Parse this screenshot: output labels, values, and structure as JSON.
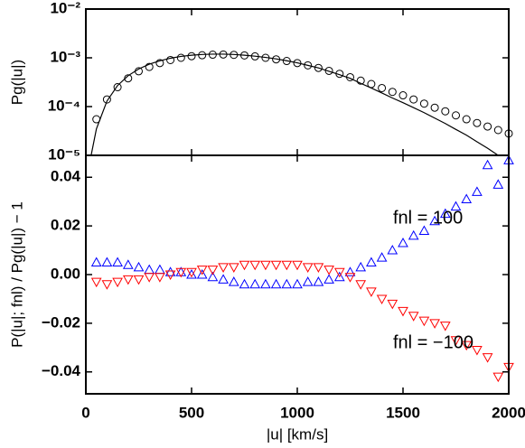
{
  "chart_data": [
    {
      "type": "scatter",
      "ylabel": "Pg(|u|)",
      "ylog": true,
      "xlim": [
        0,
        2000
      ],
      "xticks": [
        0,
        500,
        1000,
        1500,
        2000
      ],
      "ylim": [
        1e-05,
        0.01
      ],
      "yticks": [
        {
          "value": 0.01,
          "label": "10⁻²"
        },
        {
          "value": 0.001,
          "label": "10⁻³"
        },
        {
          "value": 0.0001,
          "label": "10⁻⁴"
        },
        {
          "value": 1e-05,
          "label": "10⁻⁵"
        }
      ],
      "series": [
        {
          "marker": "circle",
          "color": "#000000",
          "x": [
            50,
            100,
            150,
            200,
            250,
            300,
            350,
            400,
            450,
            500,
            550,
            600,
            650,
            700,
            750,
            800,
            850,
            900,
            950,
            1000,
            1050,
            1100,
            1150,
            1200,
            1250,
            1300,
            1350,
            1400,
            1450,
            1500,
            1550,
            1600,
            1650,
            1700,
            1750,
            1800,
            1850,
            1900,
            1950,
            2000
          ],
          "values": [
            5.5e-05,
            0.00014,
            0.00025,
            0.00038,
            0.00053,
            0.00065,
            0.00078,
            0.0009,
            0.001,
            0.00108,
            0.00113,
            0.00116,
            0.00117,
            0.00115,
            0.00112,
            0.00107,
            0.001,
            0.00093,
            0.00086,
            0.00078,
            0.0007,
            0.00062,
            0.00054,
            0.00047,
            0.0004,
            0.00034,
            0.00029,
            0.00024,
            0.0002,
            0.00017,
            0.00014,
            0.000115,
            9.5e-05,
            8e-05,
            6.6e-05,
            5.5e-05,
            4.6e-05,
            3.9e-05,
            3.3e-05,
            2.8e-05
          ]
        },
        {
          "marker": "line",
          "color": "#000000",
          "x": [
            25,
            50,
            100,
            150,
            200,
            250,
            300,
            350,
            400,
            450,
            500,
            550,
            600,
            650,
            700,
            750,
            800,
            850,
            900,
            950,
            1000,
            1050,
            1100,
            1150,
            1200,
            1250,
            1300,
            1350,
            1400,
            1450,
            1500,
            1550,
            1600,
            1650,
            1700,
            1750,
            1800,
            1850,
            1900,
            1950
          ],
          "values": [
            1e-05,
            3.5e-05,
            0.00013,
            0.00027,
            0.00043,
            0.00059,
            0.00074,
            0.00087,
            0.00098,
            0.00107,
            0.00113,
            0.00117,
            0.00119,
            0.00119,
            0.00117,
            0.00113,
            0.00108,
            0.00102,
            0.00095,
            0.00087,
            0.00079,
            0.0007,
            0.00062,
            0.00053,
            0.00045,
            0.00038,
            0.0003,
            0.00024,
            0.00019,
            0.00015,
            0.00012,
            9.5e-05,
            7.5e-05,
            5.8e-05,
            4.5e-05,
            3.4e-05,
            2.6e-05,
            1.9e-05,
            1.4e-05,
            1e-05
          ]
        }
      ]
    },
    {
      "type": "scatter",
      "xlabel": "|u| [km/s]",
      "ylabel": "P(|u|; fnl) / Pg(|u|) − 1",
      "xlim": [
        0,
        2000
      ],
      "xticks": [
        0,
        500,
        1000,
        1500,
        2000
      ],
      "ylim": [
        -0.049,
        0.049
      ],
      "yticks": [
        0.04,
        0.02,
        {
          "value": 0,
          "label": "0.00"
        },
        {
          "value": -0.02,
          "label": "−0.02"
        },
        {
          "value": -0.04,
          "label": "−0.04"
        }
      ],
      "x": [
        50,
        100,
        150,
        200,
        250,
        300,
        350,
        400,
        450,
        500,
        550,
        600,
        650,
        700,
        750,
        800,
        850,
        900,
        950,
        1000,
        1050,
        1100,
        1150,
        1200,
        1250,
        1300,
        1350,
        1400,
        1450,
        1500,
        1550,
        1600,
        1650,
        1700,
        1750,
        1800,
        1850,
        1900,
        1950,
        2000
      ],
      "series": [
        {
          "marker": "triangle-up",
          "color": "#0000ff",
          "values": [
            0.005,
            0.005,
            0.005,
            0.004,
            0.003,
            0.002,
            0.002,
            0.001,
            0.001,
            0,
            0,
            -0.001,
            -0.002,
            -0.003,
            -0.004,
            -0.004,
            -0.004,
            -0.004,
            -0.004,
            -0.004,
            -0.003,
            -0.003,
            -0.002,
            -0.001,
            0.001,
            0.003,
            0.005,
            0.007,
            0.01,
            0.013,
            0.016,
            0.018,
            0.022,
            0.025,
            0.028,
            0.031,
            0.034,
            0.045,
            0.037,
            0.047
          ]
        },
        {
          "marker": "triangle-down",
          "color": "#ff0000",
          "values": [
            -0.003,
            -0.004,
            -0.003,
            -0.002,
            -0.002,
            -0.001,
            -0.001,
            0,
            0.001,
            0.001,
            0.002,
            0.002,
            0.003,
            0.003,
            0.004,
            0.004,
            0.004,
            0.004,
            0.004,
            0.004,
            0.003,
            0.003,
            0.002,
            0.001,
            -0.001,
            -0.004,
            -0.007,
            -0.01,
            -0.012,
            -0.015,
            -0.017,
            -0.019,
            -0.02,
            -0.021,
            -0.027,
            -0.029,
            -0.031,
            -0.034,
            -0.042,
            -0.038
          ]
        }
      ],
      "annotations": [
        {
          "text": "fnl = 100",
          "color": "#0000ff"
        },
        {
          "text": "fnl = −100",
          "color": "#ff0000"
        }
      ]
    }
  ]
}
